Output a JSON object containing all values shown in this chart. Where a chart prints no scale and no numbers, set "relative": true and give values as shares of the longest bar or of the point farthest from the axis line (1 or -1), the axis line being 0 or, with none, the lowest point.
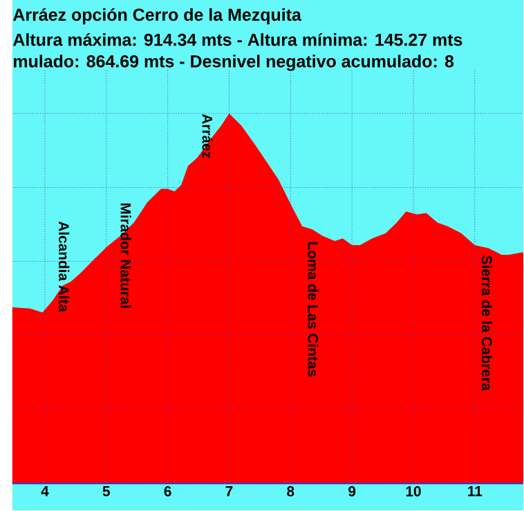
{
  "chart_data": {
    "type": "area",
    "title": "Arráez opción Cerro de la Mezquita",
    "subtitle": "Altura máxima: 914.34 mts - Altura mínima: 145.27 mts",
    "annotations": [
      "mulado: 864.69 mts - Desnivel negativo acumulado: 8",
      {
        "text": "Alcandia Alta",
        "x": 3.96,
        "y": 0.462
      },
      {
        "text": "Mirador Natural",
        "x": 5.67,
        "y": 0.76
      },
      {
        "text": "Arráez",
        "x": 7.0,
        "y": 1
      },
      {
        "text": "Loma de Las Cintas",
        "x": 8.72,
        "y": 0.655
      },
      {
        "text": "Sierra de la Cabrera",
        "x": 11.55,
        "y": 0.618
      }
    ],
    "relative": true,
    "grid": true,
    "xlim": [
      3.47,
      11.79
    ],
    "xticks": [
      4,
      5,
      6,
      7,
      8,
      9,
      10,
      11
    ],
    "series": [
      {
        "color": "#ff0000",
        "x": [
          3.47,
          3.76,
          3.96,
          4.13,
          4.29,
          4.42,
          4.57,
          4.79,
          5.01,
          5.23,
          5.45,
          5.67,
          5.89,
          6.0,
          6.11,
          6.22,
          6.33,
          6.48,
          6.7,
          6.87,
          7.0,
          7.2,
          7.42,
          7.64,
          7.8,
          8.02,
          8.19,
          8.35,
          8.52,
          8.72,
          8.85,
          9.0,
          9.13,
          9.33,
          9.55,
          9.73,
          9.88,
          10.06,
          10.21,
          10.39,
          10.56,
          10.78,
          11.0,
          11.22,
          11.44,
          11.55,
          11.79
        ],
        "values": [
          0.476,
          0.473,
          0.462,
          0.495,
          0.535,
          0.545,
          0.567,
          0.604,
          0.64,
          0.669,
          0.705,
          0.76,
          0.796,
          0.796,
          0.789,
          0.807,
          0.858,
          0.88,
          0.931,
          0.967,
          1,
          0.967,
          0.916,
          0.862,
          0.822,
          0.749,
          0.695,
          0.687,
          0.669,
          0.655,
          0.662,
          0.644,
          0.644,
          0.662,
          0.676,
          0.705,
          0.735,
          0.727,
          0.731,
          0.705,
          0.695,
          0.676,
          0.644,
          0.636,
          0.618,
          0.618,
          0.625
        ]
      }
    ]
  }
}
